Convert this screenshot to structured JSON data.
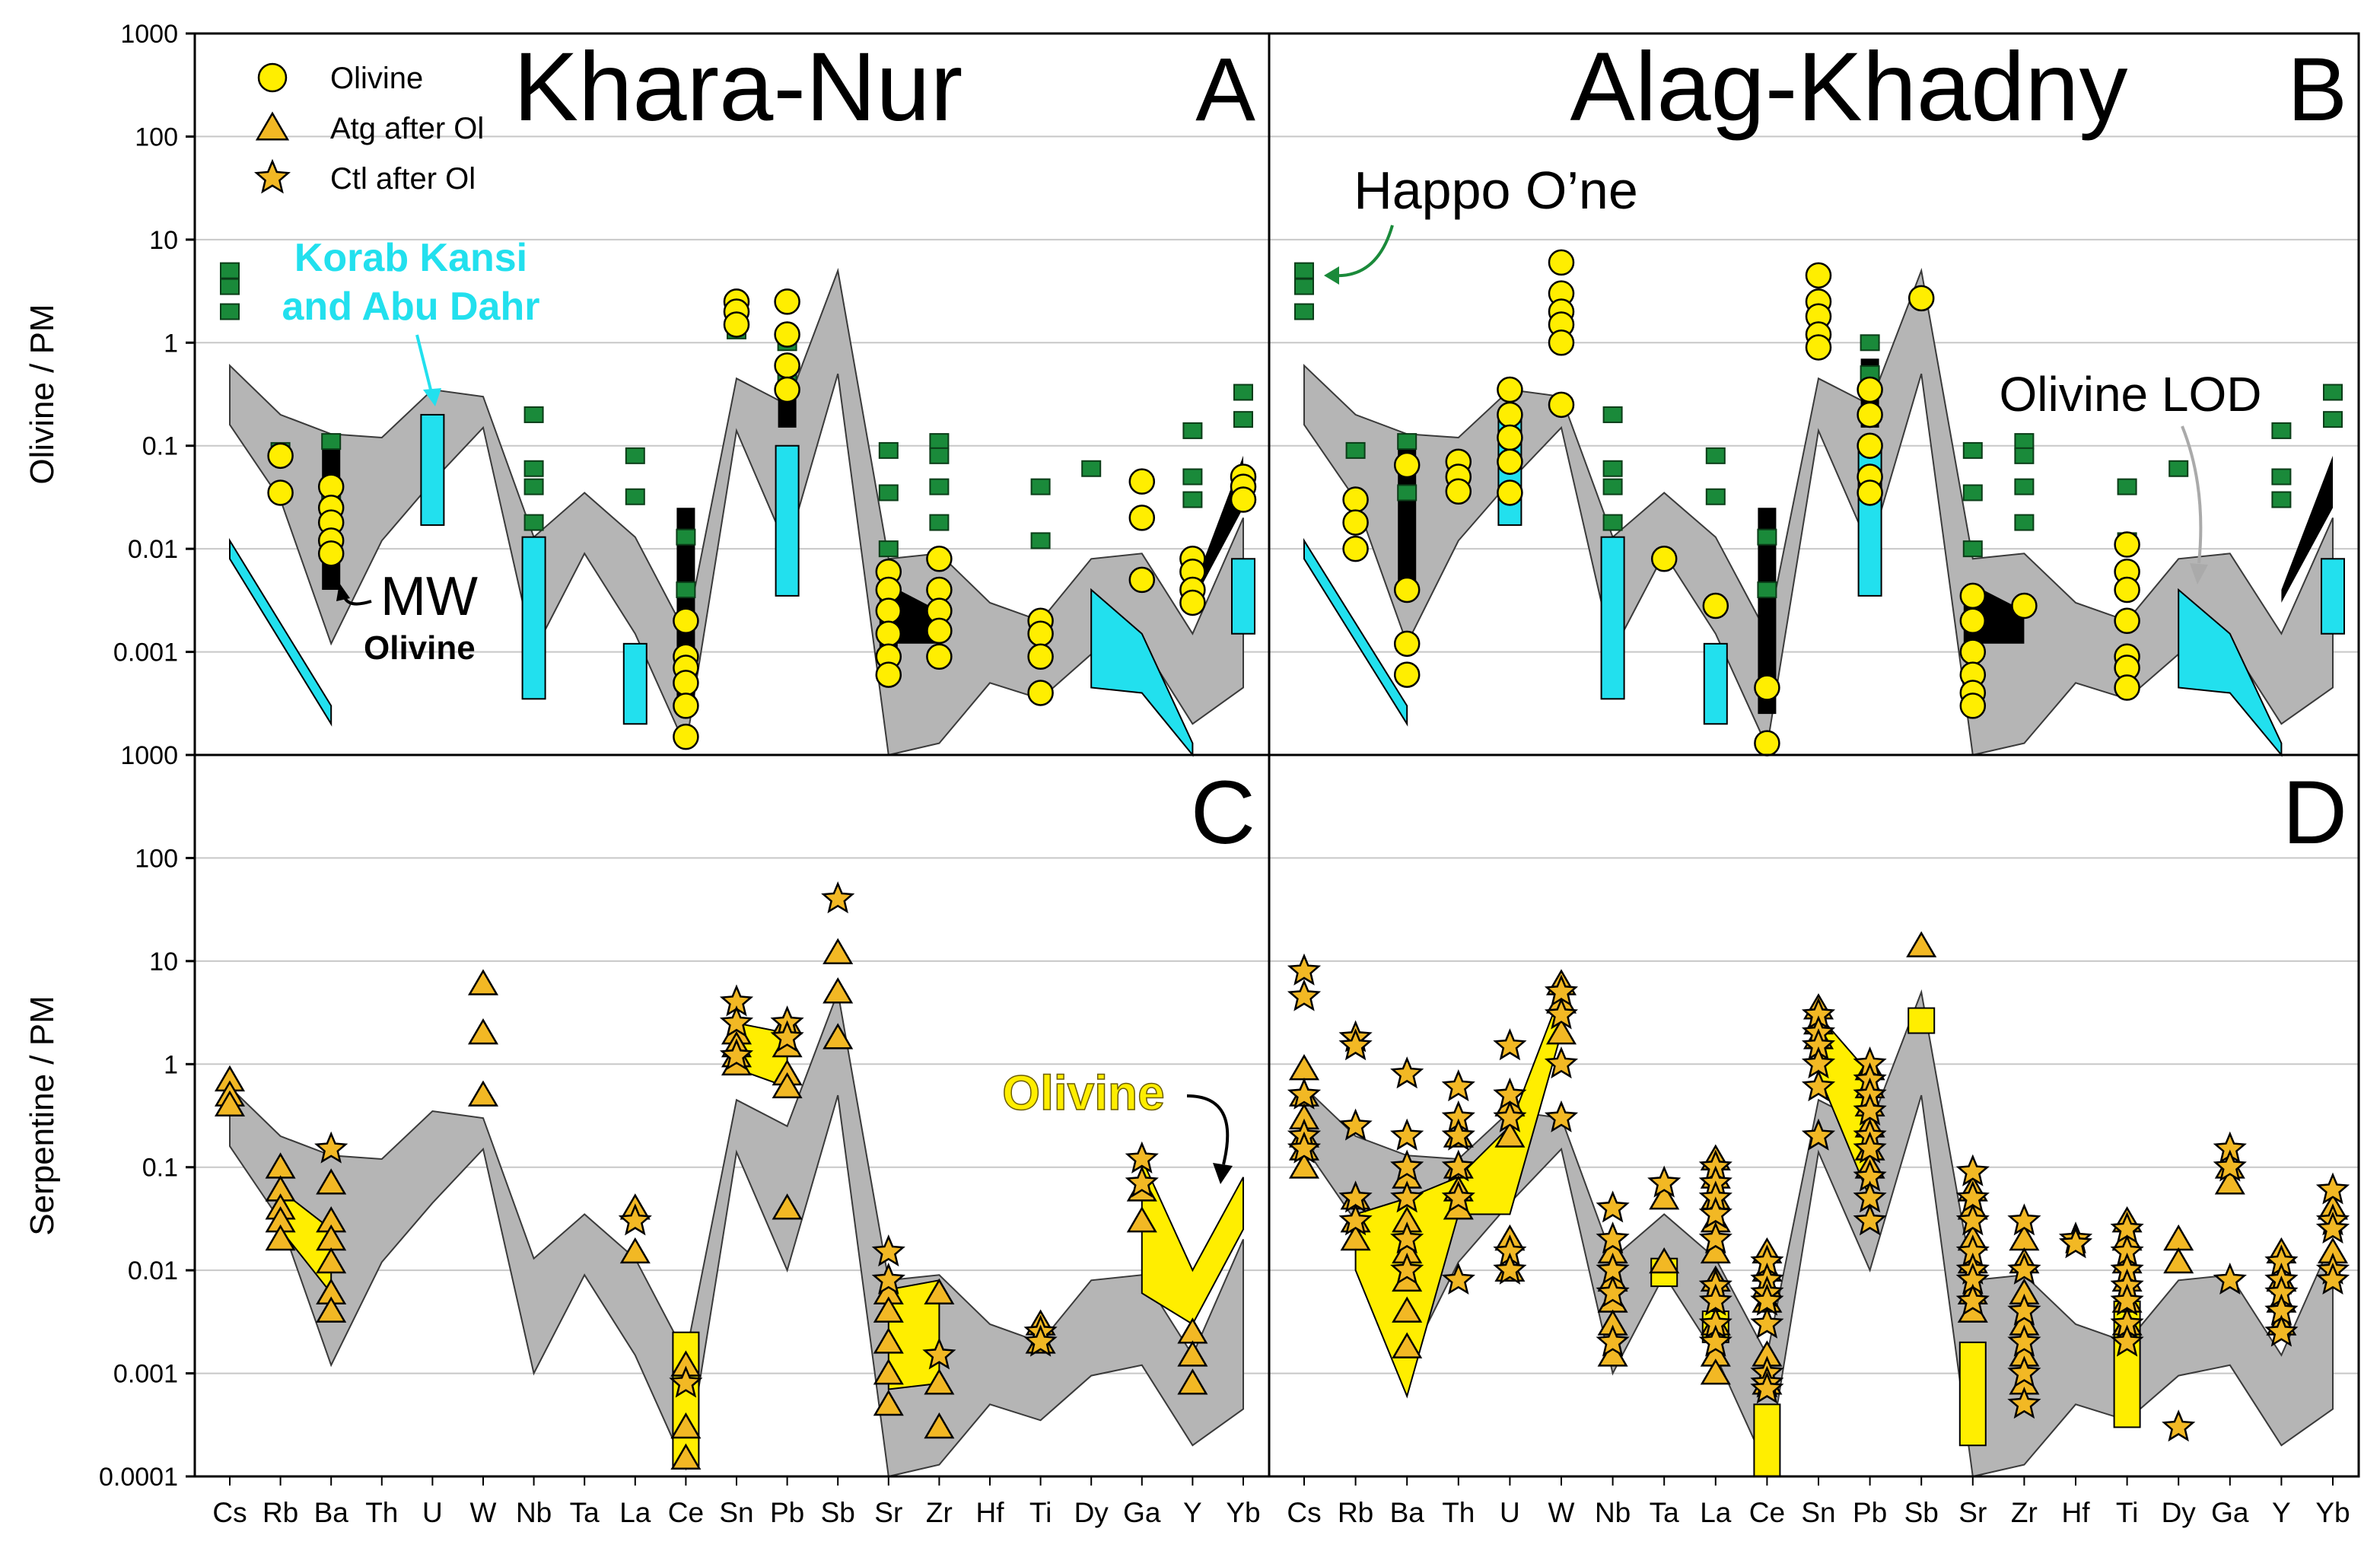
{
  "chart_data": {
    "type": "scatter",
    "yscale": "log",
    "elements": [
      "Cs",
      "Rb",
      "Ba",
      "Th",
      "U",
      "W",
      "Nb",
      "Ta",
      "La",
      "Ce",
      "Sn",
      "Pb",
      "Sb",
      "Sr",
      "Zr",
      "Hf",
      "Ti",
      "Dy",
      "Ga",
      "Y",
      "Yb"
    ],
    "ylim": [
      0.0001,
      1000
    ],
    "top_ticks": [
      "1000",
      "100",
      "10",
      "1",
      "0.1",
      "0.01",
      "0.001"
    ],
    "bottom_ticks": [
      "1000",
      "100",
      "10",
      "1",
      "0.1",
      "0.01",
      "0.001",
      "0.0001"
    ],
    "ylabel_top": "Olivine / PM",
    "ylabel_bottom": "Serpentine / PM",
    "legend": [
      "Olivine",
      "Atg after Ol",
      "Ctl after Ol"
    ],
    "colors": {
      "olivine": "#ffee00",
      "serpentine": "#f2b824",
      "happo": "#1a8a3a",
      "korab": "#22e0ee",
      "lod": "#aaaaaa",
      "band": "#b5b5b5"
    },
    "band_upper": [
      0.6,
      0.2,
      0.13,
      0.12,
      0.35,
      0.3,
      0.013,
      0.035,
      0.013,
      0.0015,
      0.45,
      0.25,
      5,
      0.008,
      0.009,
      0.003,
      0.002,
      0.008,
      0.009,
      0.0015,
      0.02
    ],
    "band_lower": [
      0.16,
      0.03,
      0.0012,
      0.012,
      0.045,
      0.15,
      0.001,
      0.009,
      0.0015,
      0.00012,
      0.14,
      0.01,
      0.5,
      0.0001,
      0.00013,
      0.0005,
      0.00035,
      0.00095,
      0.0012,
      0.0002,
      0.00045
    ],
    "happo_one": {
      "Cs": [
        5,
        3.5,
        2
      ],
      "Rb": [
        0.09
      ],
      "Ba": [
        0.11,
        0.035
      ],
      "Nb": [
        0.2,
        0.06,
        0.04,
        0.018
      ],
      "La": [
        0.08,
        0.032
      ],
      "Ce": [
        0.013,
        0.004
      ],
      "Sn": [
        1.3
      ],
      "Pb": [
        1,
        0.5
      ],
      "Sr": [
        0.09,
        0.035,
        0.01
      ],
      "Zr": [
        0.11,
        0.08,
        0.04,
        0.018
      ],
      "Ti": [
        0.04,
        0.012
      ],
      "Dy": [
        0.06
      ],
      "Y": [
        0.14,
        0.05,
        0.03
      ],
      "Yb": [
        0.33,
        0.18
      ]
    },
    "korab_bars": {
      "U": [
        0.017,
        0.2
      ],
      "Nb": [
        0.00035,
        0.013
      ],
      "La": [
        0.0002,
        0.0012
      ],
      "Pb": [
        0.0035,
        0.1
      ],
      "Yb": [
        0.0015,
        0.008
      ]
    },
    "korab_polys": [
      [
        [
          "Cs",
          0.012
        ],
        [
          "Ba",
          0.0003
        ],
        [
          "Ba",
          0.0002
        ],
        [
          "Cs",
          0.008
        ]
      ],
      [
        [
          "Dy",
          0.004
        ],
        [
          "Ga",
          0.0015
        ],
        [
          "Y",
          0.00013
        ],
        [
          "Y",
          0.0001
        ],
        [
          "Ga",
          0.0004
        ],
        [
          "Dy",
          0.00045
        ]
      ]
    ],
    "mw_bars": {
      "Ba": [
        0.004,
        0.1
      ],
      "Pb": [
        0.15,
        0.7
      ],
      "Ce": [
        0.00025,
        0.025
      ],
      "Sr": [
        0.001,
        0.004
      ]
    },
    "mw_polys": [
      [
        [
          "Sr",
          0.0045
        ],
        [
          "Zr",
          0.0025
        ],
        [
          "Zr",
          0.0012
        ],
        [
          "Sr",
          0.0012
        ]
      ],
      [
        [
          "Y",
          0.004
        ],
        [
          "Yb",
          0.08
        ],
        [
          "Yb",
          0.025
        ],
        [
          "Y",
          0.003
        ]
      ]
    ],
    "A_olivine": {
      "Rb": [
        0.08,
        0.035
      ],
      "Ba": [
        0.04,
        0.025,
        0.018,
        0.012,
        0.009
      ],
      "Ce": [
        0.002,
        0.0009,
        0.0007,
        0.0005,
        0.0003,
        0.00015
      ],
      "Sn": [
        2.5,
        2,
        1.5
      ],
      "Pb": [
        2.5,
        1.2,
        0.6,
        0.35
      ],
      "Sr": [
        0.006,
        0.004,
        0.0025,
        0.0015,
        0.0009,
        0.0006
      ],
      "Zr": [
        0.008,
        0.004,
        0.0025,
        0.0016,
        0.0009
      ],
      "Ti": [
        0.002,
        0.0015,
        0.0009,
        0.0004
      ],
      "Ga": [
        0.045,
        0.02,
        0.005
      ],
      "Y": [
        0.008,
        0.006,
        0.004,
        0.003
      ],
      "Yb": [
        0.05,
        0.04,
        0.03
      ]
    },
    "B_olivine": {
      "Rb": [
        0.03,
        0.018,
        0.01
      ],
      "Ba": [
        0.065,
        0.004,
        0.0012,
        0.0006
      ],
      "Th": [
        0.07,
        0.05,
        0.036
      ],
      "U": [
        0.35,
        0.2,
        0.12,
        0.07,
        0.035
      ],
      "W": [
        6,
        3,
        2,
        1.5,
        1,
        0.25
      ],
      "Ta": [
        0.008
      ],
      "La": [
        0.0028
      ],
      "Ce": [
        0.00045,
        0.00013
      ],
      "Sn": [
        4.5,
        2.5,
        1.8,
        1.2,
        0.9
      ],
      "Pb": [
        0.35,
        0.2,
        0.1,
        0.05,
        0.035
      ],
      "Sb": [
        2.7
      ],
      "Sr": [
        0.0035,
        0.002,
        0.001,
        0.0006,
        0.0004,
        0.0003
      ],
      "Zr": [
        0.0028
      ],
      "Ti": [
        0.011,
        0.006,
        0.004,
        0.002,
        0.0009,
        0.0007,
        0.00045
      ]
    },
    "C_atg": {
      "Cs": [
        0.7,
        0.5,
        0.4
      ],
      "Rb": [
        0.1,
        0.06,
        0.04,
        0.03,
        0.02
      ],
      "Ba": [
        0.07,
        0.03,
        0.02,
        0.012,
        0.006,
        0.004
      ],
      "W": [
        6,
        2,
        0.5
      ],
      "La": [
        0.04,
        0.015
      ],
      "Ce": [
        0.0012,
        0.0003,
        0.00015
      ],
      "Sn": [
        2,
        1.5,
        1.2,
        1
      ],
      "Pb": [
        2.5,
        1.5,
        0.8,
        0.6,
        0.04
      ],
      "Sb": [
        12,
        5,
        1.8
      ],
      "Sr": [
        0.006,
        0.004,
        0.002,
        0.001,
        0.0005
      ],
      "Zr": [
        0.006,
        0.0008,
        0.0003
      ],
      "Ti": [
        0.003,
        0.002
      ],
      "Ga": [
        0.06,
        0.03
      ],
      "Y": [
        0.0025,
        0.0015,
        0.0008
      ]
    },
    "C_ctl": {
      "Ba": [
        0.15
      ],
      "La": [
        0.03
      ],
      "Ce": [
        0.0008
      ],
      "Sn": [
        4,
        2.5,
        1.2
      ],
      "Pb": [
        2.5,
        1.8
      ],
      "Sb": [
        40
      ],
      "Sr": [
        0.015,
        0.008
      ],
      "Zr": [
        0.0015
      ],
      "Ti": [
        0.0025,
        0.002
      ],
      "Ga": [
        0.12,
        0.07
      ]
    },
    "D_atg": {
      "Cs": [
        0.9,
        0.5,
        0.3,
        0.2,
        0.15,
        0.1
      ],
      "Rb": [
        0.05,
        0.03,
        0.02
      ],
      "Ba": [
        0.08,
        0.03,
        0.015,
        0.008,
        0.004,
        0.0018
      ],
      "Th": [
        0.2,
        0.1,
        0.06,
        0.04
      ],
      "U": [
        0.4,
        0.2,
        0.02,
        0.01
      ],
      "W": [
        6,
        4,
        2
      ],
      "Nb": [
        0.015,
        0.008,
        0.005,
        0.003,
        0.0015
      ],
      "Ta": [
        0.05,
        0.012
      ],
      "La": [
        0.12,
        0.08,
        0.05,
        0.03,
        0.015,
        0.008,
        0.003,
        0.0015,
        0.001
      ],
      "Ce": [
        0.015,
        0.01,
        0.007,
        0.005,
        0.0015,
        0.0008
      ],
      "Sn": [
        3.5,
        2.5,
        1.8
      ],
      "Pb": [
        0.9,
        0.6,
        0.4,
        0.25,
        0.15,
        0.1
      ],
      "Sb": [
        14
      ],
      "Sr": [
        0.06,
        0.04,
        0.02,
        0.012,
        0.006,
        0.004
      ],
      "Zr": [
        0.02,
        0.012,
        0.006,
        0.003,
        0.0015,
        0.0008
      ],
      "Ti": [
        0.03,
        0.02,
        0.012,
        0.008,
        0.005,
        0.003
      ],
      "Dy": [
        0.02,
        0.012
      ],
      "Ga": [
        0.1,
        0.07
      ],
      "Y": [
        0.015,
        0.008,
        0.005,
        0.003
      ],
      "Yb": [
        0.04,
        0.015
      ]
    },
    "D_ctl": {
      "Cs": [
        8,
        4.5,
        0.5,
        0.2,
        0.15
      ],
      "Rb": [
        1.8,
        1.5,
        0.25,
        0.05,
        0.03
      ],
      "Ba": [
        0.8,
        0.2,
        0.1,
        0.05,
        0.02,
        0.01
      ],
      "Th": [
        0.6,
        0.3,
        0.2,
        0.1,
        0.05,
        0.008
      ],
      "U": [
        1.5,
        0.5,
        0.3,
        0.015,
        0.01
      ],
      "W": [
        5,
        3,
        1,
        0.3
      ],
      "Nb": [
        0.04,
        0.02,
        0.01,
        0.006,
        0.002
      ],
      "Ta": [
        0.07
      ],
      "La": [
        0.1,
        0.07,
        0.05,
        0.035,
        0.02,
        0.007,
        0.005,
        0.003,
        0.002
      ],
      "Ce": [
        0.012,
        0.008,
        0.006,
        0.005,
        0.003,
        0.001,
        0.0008,
        0.0007
      ],
      "Sn": [
        3,
        2,
        1.5,
        1,
        0.6,
        0.2
      ],
      "Pb": [
        1,
        0.7,
        0.5,
        0.35,
        0.2,
        0.15,
        0.08,
        0.05,
        0.03
      ],
      "Sr": [
        0.09,
        0.05,
        0.03,
        0.015,
        0.01,
        0.008,
        0.005
      ],
      "Zr": [
        0.03,
        0.01,
        0.004,
        0.002,
        0.001,
        0.0005
      ],
      "Hf": [
        0.02,
        0.018
      ],
      "Ti": [
        0.025,
        0.015,
        0.01,
        0.007,
        0.005,
        0.003,
        0.002
      ],
      "Dy": [
        0.0003
      ],
      "Ga": [
        0.15,
        0.1,
        0.008
      ],
      "Y": [
        0.012,
        0.008,
        0.006,
        0.004,
        0.0025
      ],
      "Yb": [
        0.06,
        0.03,
        0.025,
        0.01,
        0.008
      ]
    },
    "C_yellow": [
      [
        [
          "Rb",
          0.06
        ],
        [
          "Ba",
          0.025
        ],
        [
          "Ba",
          0.006
        ],
        [
          "Rb",
          0.025
        ]
      ],
      [
        [
          "Sn",
          2.5
        ],
        [
          "Pb",
          2
        ],
        [
          "Pb",
          0.6
        ],
        [
          "Sn",
          0.9
        ]
      ],
      [
        [
          "Sr",
          0.0065
        ],
        [
          "Zr",
          0.008
        ],
        [
          "Zr",
          0.0008
        ],
        [
          "Sr",
          0.0007
        ]
      ],
      [
        [
          "Ga",
          0.12
        ],
        [
          "Y",
          0.01
        ],
        [
          "Yb",
          0.08
        ],
        [
          "Yb",
          0.025
        ],
        [
          "Y",
          0.003
        ],
        [
          "Ga",
          0.006
        ]
      ]
    ],
    "C_yellow_bars": {
      "Ce": [
        0.00012,
        0.0025
      ]
    },
    "D_yellow": [
      [
        [
          "Rb",
          0.035
        ],
        [
          "Ba",
          0.05
        ],
        [
          "Th",
          0.08
        ],
        [
          "U",
          0.25
        ],
        [
          "W",
          5
        ],
        [
          "W",
          2
        ],
        [
          "U",
          0.035
        ],
        [
          "Th",
          0.035
        ],
        [
          "Ba",
          0.0006
        ],
        [
          "Rb",
          0.01
        ]
      ],
      [
        [
          "Sn",
          3
        ],
        [
          "Pb",
          0.8
        ],
        [
          "Pb",
          0.05
        ],
        [
          "Sn",
          0.8
        ]
      ]
    ],
    "D_yellow_bars": {
      "Ta": [
        0.007,
        0.013
      ],
      "La": [
        0.002,
        0.004
      ],
      "Ce": [
        0.0001,
        0.0005
      ],
      "Sb": [
        2,
        3.5
      ],
      "Sr": [
        0.0002,
        0.002
      ],
      "Ti": [
        0.0003,
        0.005
      ]
    },
    "panels": {
      "A": {
        "title": "Khara-Nur",
        "letter": "A"
      },
      "B": {
        "title": "Alag-Khadny",
        "letter": "B"
      },
      "C": {
        "letter": "C"
      },
      "D": {
        "letter": "D"
      }
    },
    "annotations": {
      "korab": [
        "Korab Kansi",
        "and Abu Dahr"
      ],
      "mw": "MW",
      "mw_sub": "Olivine",
      "happo": "Happo O’ne",
      "lod": "Olivine LOD",
      "olivine_c": "Olivine"
    }
  }
}
